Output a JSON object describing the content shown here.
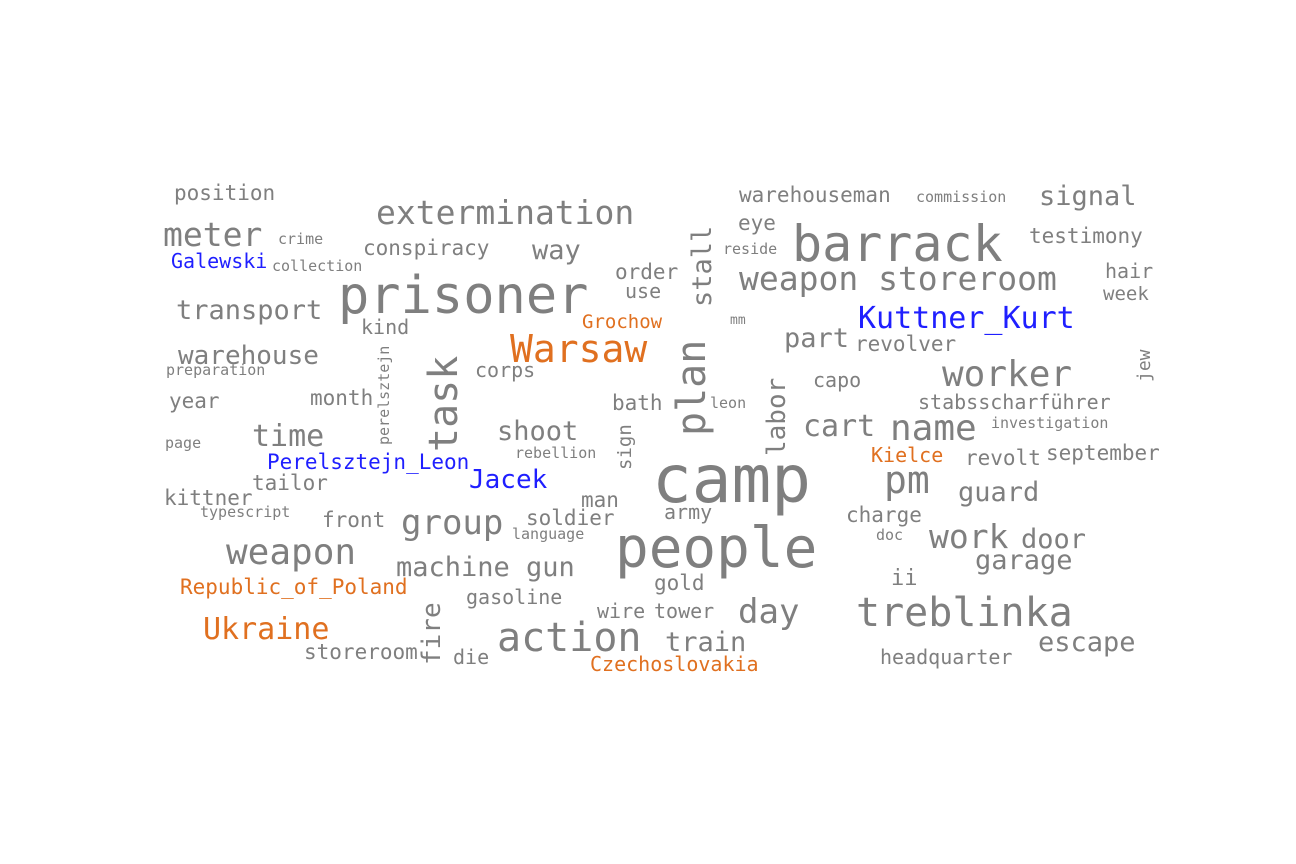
{
  "colors": {
    "default": "#7f7f7f",
    "person": "#1f1fff",
    "place": "#e07020",
    "background": "#ffffff"
  },
  "words": [
    {
      "text": "camp",
      "type": "default"
    },
    {
      "text": "people",
      "type": "default"
    },
    {
      "text": "prisoner",
      "type": "default"
    },
    {
      "text": "barrack",
      "type": "default"
    },
    {
      "text": "treblinka",
      "type": "default"
    },
    {
      "text": "action",
      "type": "default"
    },
    {
      "text": "extermination",
      "type": "default"
    },
    {
      "text": "weapon storeroom",
      "type": "default"
    },
    {
      "text": "worker",
      "type": "default"
    },
    {
      "text": "weapon",
      "type": "default"
    },
    {
      "text": "task",
      "type": "default"
    },
    {
      "text": "plan",
      "type": "default"
    },
    {
      "text": "name",
      "type": "default"
    },
    {
      "text": "pm",
      "type": "default"
    },
    {
      "text": "group",
      "type": "default"
    },
    {
      "text": "meter",
      "type": "default"
    },
    {
      "text": "day",
      "type": "default"
    },
    {
      "text": "work",
      "type": "default"
    },
    {
      "text": "time",
      "type": "default"
    },
    {
      "text": "cart",
      "type": "default"
    },
    {
      "text": "shoot",
      "type": "default"
    },
    {
      "text": "machine gun",
      "type": "default"
    },
    {
      "text": "transport",
      "type": "default"
    },
    {
      "text": "warehouse",
      "type": "default"
    },
    {
      "text": "signal",
      "type": "default"
    },
    {
      "text": "guard",
      "type": "default"
    },
    {
      "text": "train",
      "type": "default"
    },
    {
      "text": "escape",
      "type": "default"
    },
    {
      "text": "garage",
      "type": "default"
    },
    {
      "text": "door",
      "type": "default"
    },
    {
      "text": "way",
      "type": "default"
    },
    {
      "text": "part",
      "type": "default"
    },
    {
      "text": "stall",
      "type": "default"
    },
    {
      "text": "fire",
      "type": "default"
    },
    {
      "text": "labor",
      "type": "default"
    },
    {
      "text": "conspiracy",
      "type": "default"
    },
    {
      "text": "testimony",
      "type": "default"
    },
    {
      "text": "position",
      "type": "default"
    },
    {
      "text": "warehouseman",
      "type": "default"
    },
    {
      "text": "eye",
      "type": "default"
    },
    {
      "text": "order",
      "type": "default"
    },
    {
      "text": "use",
      "type": "default"
    },
    {
      "text": "hair",
      "type": "default"
    },
    {
      "text": "week",
      "type": "default"
    },
    {
      "text": "revolver",
      "type": "default"
    },
    {
      "text": "capo",
      "type": "default"
    },
    {
      "text": "stabsscharführer",
      "type": "default"
    },
    {
      "text": "revolt",
      "type": "default"
    },
    {
      "text": "september",
      "type": "default"
    },
    {
      "text": "corps",
      "type": "default"
    },
    {
      "text": "month",
      "type": "default"
    },
    {
      "text": "year",
      "type": "default"
    },
    {
      "text": "bath",
      "type": "default"
    },
    {
      "text": "kind",
      "type": "default"
    },
    {
      "text": "soldier",
      "type": "default"
    },
    {
      "text": "front",
      "type": "default"
    },
    {
      "text": "tailor",
      "type": "default"
    },
    {
      "text": "kittner",
      "type": "default"
    },
    {
      "text": "man",
      "type": "default"
    },
    {
      "text": "army",
      "type": "default"
    },
    {
      "text": "charge",
      "type": "default"
    },
    {
      "text": "ii",
      "type": "default"
    },
    {
      "text": "gold",
      "type": "default"
    },
    {
      "text": "gasoline",
      "type": "default"
    },
    {
      "text": "wire",
      "type": "default"
    },
    {
      "text": "tower",
      "type": "default"
    },
    {
      "text": "storeroom",
      "type": "default"
    },
    {
      "text": "die",
      "type": "default"
    },
    {
      "text": "headquarter",
      "type": "default"
    },
    {
      "text": "sign",
      "type": "default"
    },
    {
      "text": "jew",
      "type": "default"
    },
    {
      "text": "crime",
      "type": "default"
    },
    {
      "text": "collection",
      "type": "default"
    },
    {
      "text": "commission",
      "type": "default"
    },
    {
      "text": "reside",
      "type": "default"
    },
    {
      "text": "mm",
      "type": "default"
    },
    {
      "text": "preparation",
      "type": "default"
    },
    {
      "text": "page",
      "type": "default"
    },
    {
      "text": "perelsztejn",
      "type": "default"
    },
    {
      "text": "leon",
      "type": "default"
    },
    {
      "text": "rebellion",
      "type": "default"
    },
    {
      "text": "investigation",
      "type": "default"
    },
    {
      "text": "typescript",
      "type": "default"
    },
    {
      "text": "language",
      "type": "default"
    },
    {
      "text": "doc",
      "type": "default"
    },
    {
      "text": "Kuttner_Kurt",
      "type": "person"
    },
    {
      "text": "Galewski",
      "type": "person"
    },
    {
      "text": "Perelsztejn_Leon",
      "type": "person"
    },
    {
      "text": "Jacek",
      "type": "person"
    },
    {
      "text": "Warsaw",
      "type": "place"
    },
    {
      "text": "Ukraine",
      "type": "place"
    },
    {
      "text": "Republic_of_Poland",
      "type": "place"
    },
    {
      "text": "Czechoslovakia",
      "type": "place"
    },
    {
      "text": "Grochow",
      "type": "place"
    },
    {
      "text": "Kielce",
      "type": "place"
    }
  ]
}
